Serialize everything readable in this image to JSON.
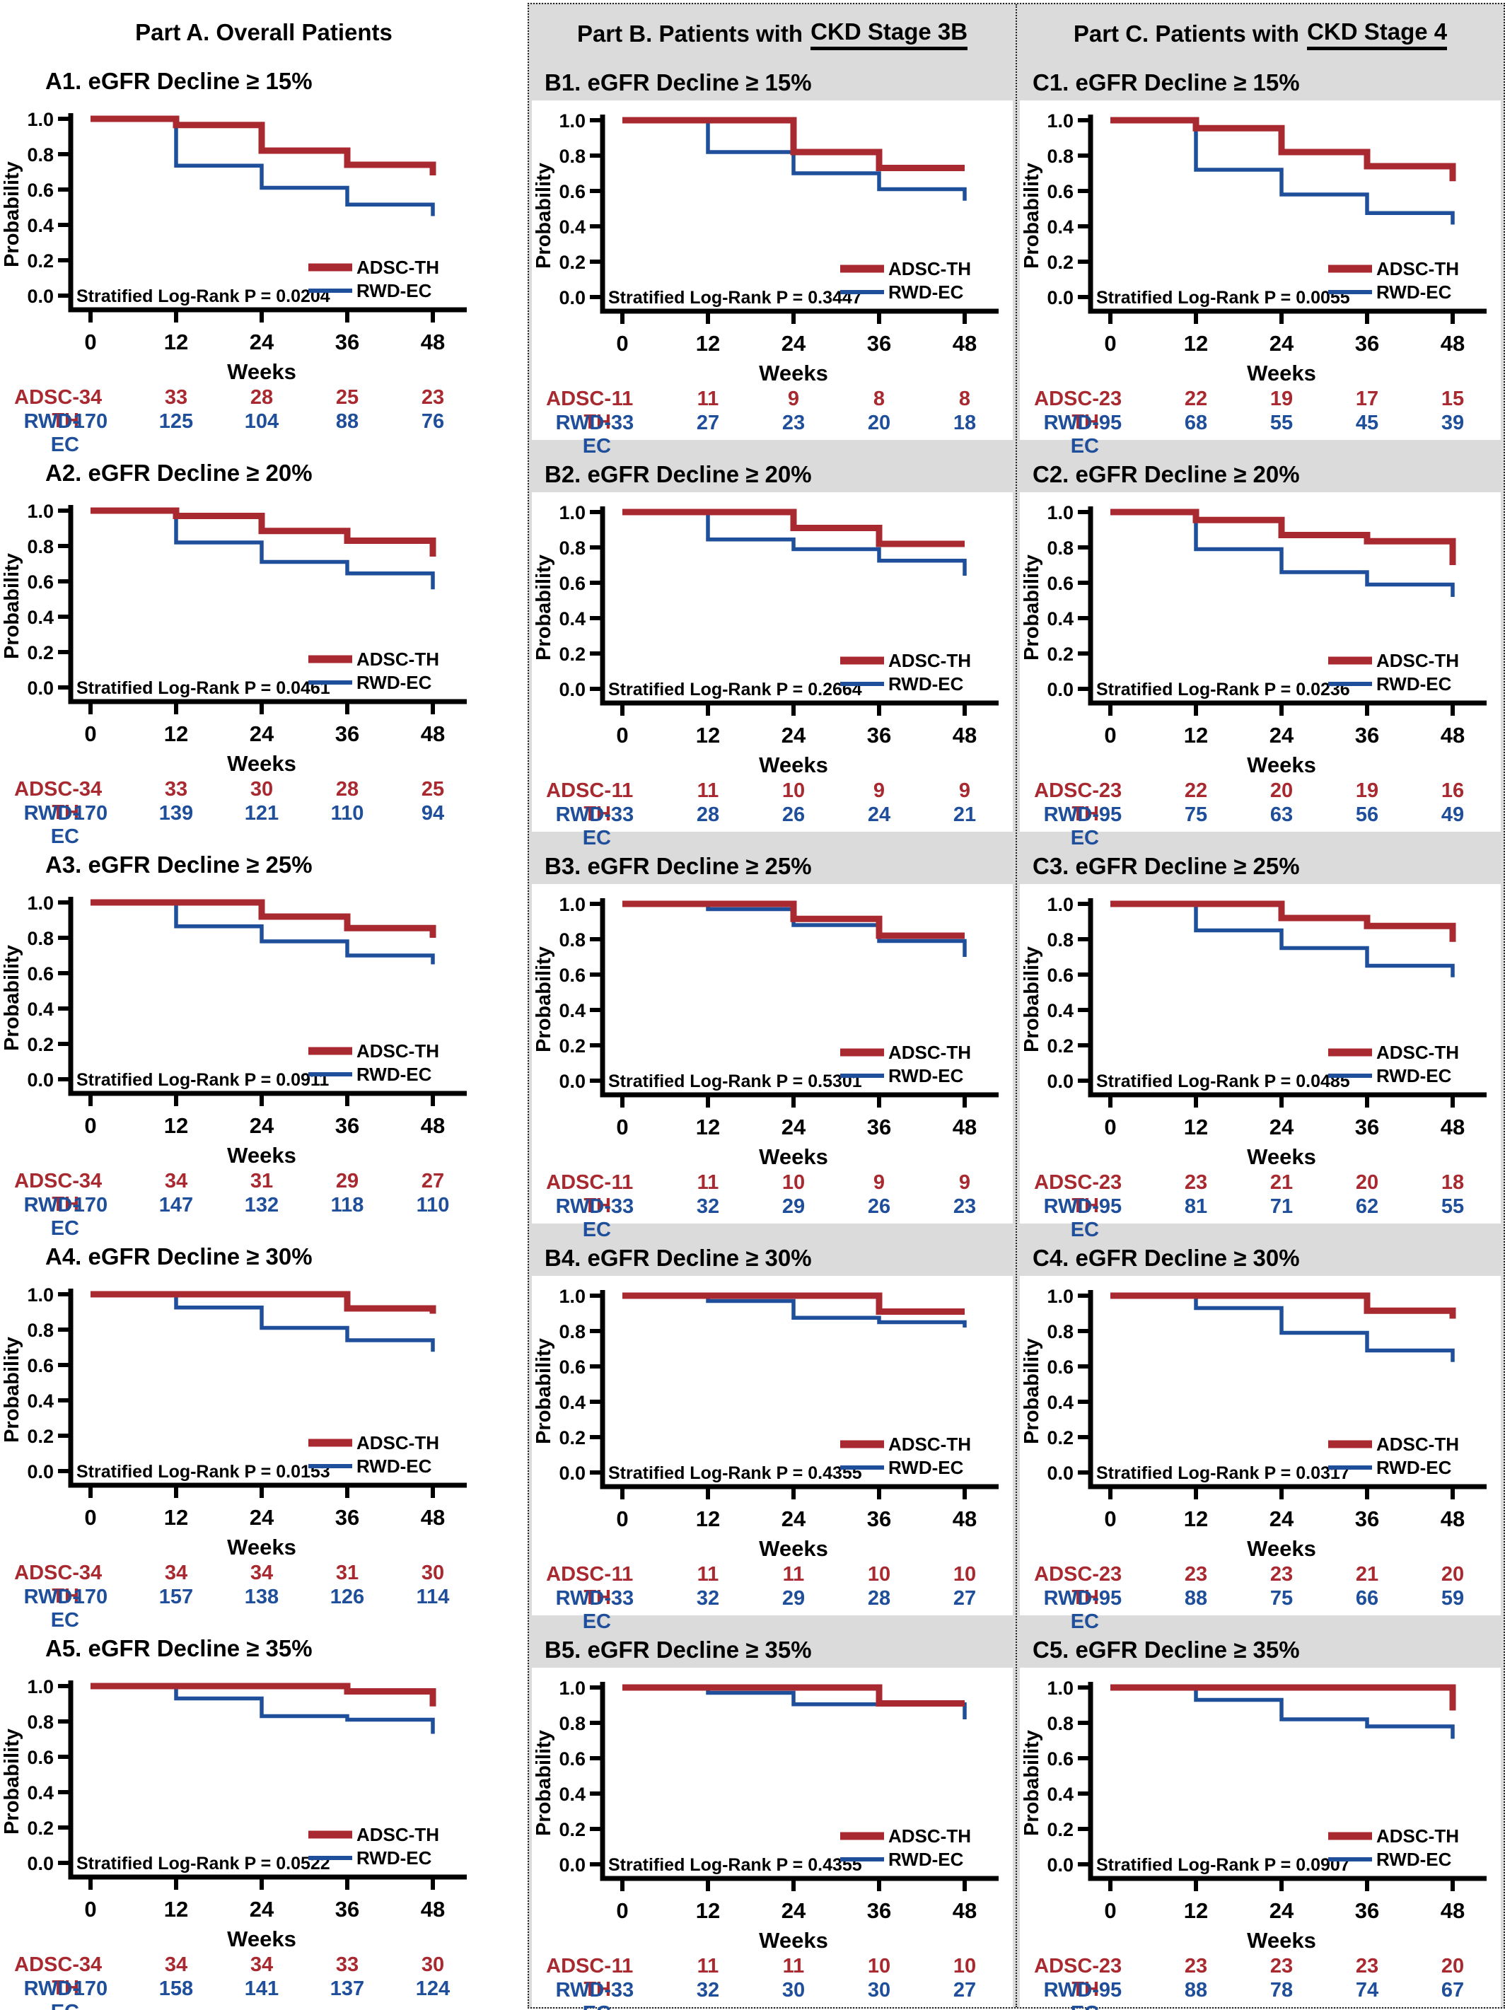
{
  "columns": [
    {
      "id": "A",
      "header_prefix": "Part A. Overall Patients",
      "header_underline": ""
    },
    {
      "id": "B",
      "header_prefix": "Part B. Patients with ",
      "header_underline": "CKD Stage 3B"
    },
    {
      "id": "C",
      "header_prefix": "Part C. Patients with ",
      "header_underline": "CKD Stage 4"
    }
  ],
  "colors": {
    "adsc_th": "#A8292F",
    "rwd_ec": "#1F4E9A",
    "panel_grey": "#DBDBDB",
    "axis": "#000000"
  },
  "chart_data": {
    "type": "line",
    "subtype": "kaplan-meier-step",
    "xlabel": "Weeks",
    "ylabel": "Probability",
    "x_ticks": [
      0,
      12,
      24,
      36,
      48
    ],
    "y_ticks": [
      1.0,
      0.8,
      0.6,
      0.4,
      0.2,
      0.0
    ],
    "x_range": [
      0,
      48
    ],
    "y_range": [
      0,
      1
    ],
    "legend": [
      "ADSC-TH",
      "RWD-EC"
    ],
    "legend_position": "bottom-right-inside",
    "grid": false,
    "risk_table_row_labels": [
      "ADSC-TH",
      "RWD-EC"
    ],
    "panels": [
      {
        "id": "A1",
        "column": "A",
        "title": "A1. eGFR Decline ≥ 15%",
        "p_text": "Stratified Log-Rank P = 0.0204",
        "series": [
          {
            "name": "ADSC-TH",
            "levels": [
              1.0,
              0.965,
              0.82,
              0.74
            ],
            "end": 0.68
          },
          {
            "name": "RWD-EC",
            "levels": [
              1.0,
              0.735,
              0.61,
              0.515
            ],
            "end": 0.45
          }
        ],
        "risk": [
          [
            34,
            33,
            28,
            25,
            23
          ],
          [
            170,
            125,
            104,
            88,
            76
          ]
        ]
      },
      {
        "id": "A2",
        "column": "A",
        "title": "A2. eGFR Decline ≥ 20%",
        "p_text": "Stratified Log-Rank P = 0.0461",
        "series": [
          {
            "name": "ADSC-TH",
            "levels": [
              1.0,
              0.97,
              0.885,
              0.83
            ],
            "end": 0.74
          },
          {
            "name": "RWD-EC",
            "levels": [
              1.0,
              0.82,
              0.71,
              0.645
            ],
            "end": 0.555
          }
        ],
        "risk": [
          [
            34,
            33,
            30,
            28,
            25
          ],
          [
            170,
            139,
            121,
            110,
            94
          ]
        ]
      },
      {
        "id": "A3",
        "column": "A",
        "title": "A3. eGFR Decline ≥ 25%",
        "p_text": "Stratified Log-Rank P = 0.0911",
        "series": [
          {
            "name": "ADSC-TH",
            "levels": [
              1.0,
              1.0,
              0.92,
              0.855
            ],
            "end": 0.8
          },
          {
            "name": "RWD-EC",
            "levels": [
              1.0,
              0.865,
              0.78,
              0.7
            ],
            "end": 0.65
          }
        ],
        "risk": [
          [
            34,
            34,
            31,
            29,
            27
          ],
          [
            170,
            147,
            132,
            118,
            110
          ]
        ]
      },
      {
        "id": "A4",
        "column": "A",
        "title": "A4. eGFR Decline ≥ 30%",
        "p_text": "Stratified Log-Rank P = 0.0153",
        "series": [
          {
            "name": "ADSC-TH",
            "levels": [
              1.0,
              1.0,
              1.0,
              0.92
            ],
            "end": 0.89
          },
          {
            "name": "RWD-EC",
            "levels": [
              1.0,
              0.925,
              0.81,
              0.74
            ],
            "end": 0.675
          }
        ],
        "risk": [
          [
            34,
            34,
            34,
            31,
            30
          ],
          [
            170,
            157,
            138,
            126,
            114
          ]
        ]
      },
      {
        "id": "A5",
        "column": "A",
        "title": "A5. eGFR Decline ≥ 35%",
        "p_text": "Stratified Log-Rank P = 0.0522",
        "series": [
          {
            "name": "ADSC-TH",
            "levels": [
              1.0,
              1.0,
              1.0,
              0.97
            ],
            "end": 0.885
          },
          {
            "name": "RWD-EC",
            "levels": [
              1.0,
              0.93,
              0.83,
              0.81
            ],
            "end": 0.73
          }
        ],
        "risk": [
          [
            34,
            34,
            34,
            33,
            30
          ],
          [
            170,
            158,
            141,
            137,
            124
          ]
        ]
      },
      {
        "id": "B1",
        "column": "B",
        "title": "B1. eGFR Decline ≥ 15%",
        "p_text": "Stratified Log-Rank P = 0.3447",
        "series": [
          {
            "name": "ADSC-TH",
            "levels": [
              1.0,
              1.0,
              0.82,
              0.73
            ],
            "end": 0.73
          },
          {
            "name": "RWD-EC",
            "levels": [
              1.0,
              0.82,
              0.7,
              0.61
            ],
            "end": 0.545
          }
        ],
        "risk": [
          [
            11,
            11,
            9,
            8,
            8
          ],
          [
            33,
            27,
            23,
            20,
            18
          ]
        ]
      },
      {
        "id": "B2",
        "column": "B",
        "title": "B2. eGFR Decline ≥ 20%",
        "p_text": "Stratified Log-Rank P = 0.2664",
        "series": [
          {
            "name": "ADSC-TH",
            "levels": [
              1.0,
              1.0,
              0.91,
              0.82
            ],
            "end": 0.82
          },
          {
            "name": "RWD-EC",
            "levels": [
              1.0,
              0.845,
              0.79,
              0.725
            ],
            "end": 0.64
          }
        ],
        "risk": [
          [
            11,
            11,
            10,
            9,
            9
          ],
          [
            33,
            28,
            26,
            24,
            21
          ]
        ]
      },
      {
        "id": "B3",
        "column": "B",
        "title": "B3. eGFR Decline ≥ 25%",
        "p_text": "Stratified Log-Rank P = 0.5301",
        "series": [
          {
            "name": "ADSC-TH",
            "levels": [
              1.0,
              1.0,
              0.915,
              0.82
            ],
            "end": 0.82
          },
          {
            "name": "RWD-EC",
            "levels": [
              1.0,
              0.97,
              0.88,
              0.79
            ],
            "end": 0.7
          }
        ],
        "risk": [
          [
            11,
            11,
            10,
            9,
            9
          ],
          [
            33,
            32,
            29,
            26,
            23
          ]
        ]
      },
      {
        "id": "B4",
        "column": "B",
        "title": "B4. eGFR Decline ≥ 30%",
        "p_text": "Stratified Log-Rank P = 0.4355",
        "series": [
          {
            "name": "ADSC-TH",
            "levels": [
              1.0,
              1.0,
              1.0,
              0.91
            ],
            "end": 0.91
          },
          {
            "name": "RWD-EC",
            "levels": [
              1.0,
              0.97,
              0.875,
              0.85
            ],
            "end": 0.82
          }
        ],
        "risk": [
          [
            11,
            11,
            11,
            10,
            10
          ],
          [
            33,
            32,
            29,
            28,
            27
          ]
        ]
      },
      {
        "id": "B5",
        "column": "B",
        "title": "B5. eGFR Decline ≥ 35%",
        "p_text": "Stratified Log-Rank P = 0.4355",
        "series": [
          {
            "name": "ADSC-TH",
            "levels": [
              1.0,
              1.0,
              1.0,
              0.91
            ],
            "end": 0.91
          },
          {
            "name": "RWD-EC",
            "levels": [
              1.0,
              0.97,
              0.905,
              0.905
            ],
            "end": 0.82
          }
        ],
        "risk": [
          [
            11,
            11,
            11,
            10,
            10
          ],
          [
            33,
            32,
            30,
            30,
            27
          ]
        ]
      },
      {
        "id": "C1",
        "column": "C",
        "title": "C1. eGFR Decline ≥ 15%",
        "p_text": "Stratified Log-Rank P = 0.0055",
        "series": [
          {
            "name": "ADSC-TH",
            "levels": [
              1.0,
              0.955,
              0.82,
              0.74
            ],
            "end": 0.655
          },
          {
            "name": "RWD-EC",
            "levels": [
              1.0,
              0.72,
              0.58,
              0.475
            ],
            "end": 0.41
          }
        ],
        "risk": [
          [
            23,
            22,
            19,
            17,
            15
          ],
          [
            95,
            68,
            55,
            45,
            39
          ]
        ]
      },
      {
        "id": "C2",
        "column": "C",
        "title": "C2. eGFR Decline ≥ 20%",
        "p_text": "Stratified Log-Rank P = 0.0236",
        "series": [
          {
            "name": "ADSC-TH",
            "levels": [
              1.0,
              0.955,
              0.87,
              0.835
            ],
            "end": 0.7
          },
          {
            "name": "RWD-EC",
            "levels": [
              1.0,
              0.79,
              0.66,
              0.59
            ],
            "end": 0.52
          }
        ],
        "risk": [
          [
            23,
            22,
            20,
            19,
            16
          ],
          [
            95,
            75,
            63,
            56,
            49
          ]
        ]
      },
      {
        "id": "C3",
        "column": "C",
        "title": "C3. eGFR Decline ≥ 25%",
        "p_text": "Stratified Log-Rank P = 0.0485",
        "series": [
          {
            "name": "ADSC-TH",
            "levels": [
              1.0,
              1.0,
              0.92,
              0.875
            ],
            "end": 0.785
          },
          {
            "name": "RWD-EC",
            "levels": [
              1.0,
              0.85,
              0.75,
              0.65
            ],
            "end": 0.585
          }
        ],
        "risk": [
          [
            23,
            23,
            21,
            20,
            18
          ],
          [
            95,
            81,
            71,
            62,
            55
          ]
        ]
      },
      {
        "id": "C4",
        "column": "C",
        "title": "C4. eGFR Decline ≥ 30%",
        "p_text": "Stratified Log-Rank P = 0.0317",
        "series": [
          {
            "name": "ADSC-TH",
            "levels": [
              1.0,
              1.0,
              1.0,
              0.915
            ],
            "end": 0.87
          },
          {
            "name": "RWD-EC",
            "levels": [
              1.0,
              0.93,
              0.79,
              0.69
            ],
            "end": 0.625
          }
        ],
        "risk": [
          [
            23,
            23,
            23,
            21,
            20
          ],
          [
            95,
            88,
            75,
            66,
            59
          ]
        ]
      },
      {
        "id": "C5",
        "column": "C",
        "title": "C5. eGFR Decline ≥ 35%",
        "p_text": "Stratified Log-Rank P = 0.0907",
        "series": [
          {
            "name": "ADSC-TH",
            "levels": [
              1.0,
              1.0,
              1.0,
              1.0
            ],
            "end": 0.87
          },
          {
            "name": "RWD-EC",
            "levels": [
              1.0,
              0.93,
              0.82,
              0.78
            ],
            "end": 0.71
          }
        ],
        "risk": [
          [
            23,
            23,
            23,
            23,
            20
          ],
          [
            95,
            88,
            78,
            74,
            67
          ]
        ]
      }
    ]
  }
}
